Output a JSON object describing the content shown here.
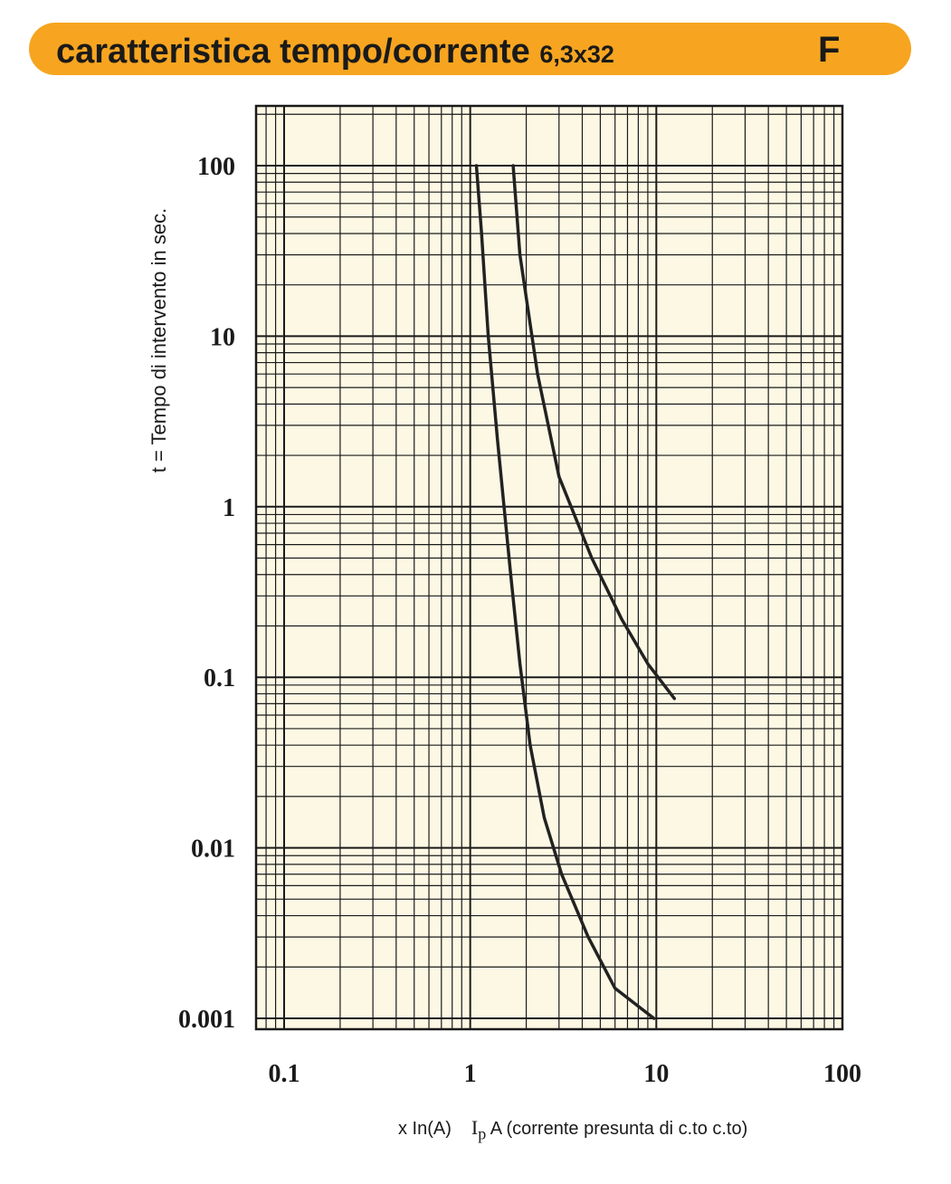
{
  "header": {
    "title": "caratteristica tempo/corrente",
    "subtitle": "6,3x32",
    "code": "F",
    "color": "#f7a520"
  },
  "chart_data": {
    "type": "line",
    "title": "caratteristica tempo/corrente 6,3x32",
    "xlabel_prefix": "x In(A)",
    "xlabel_symbol": "I",
    "xlabel_symbol_sub": "p",
    "xlabel_rest": "A (corrente presunta di c.to c.to)",
    "ylabel": "t = Tempo di intervento in sec.",
    "xscale": "log",
    "yscale": "log",
    "xlim": [
      0.08,
      100
    ],
    "ylim": [
      0.001,
      200
    ],
    "grid": true,
    "background": "#fdf8e4",
    "x_tick_labels": [
      "0.1",
      "1",
      "10",
      "100"
    ],
    "y_tick_labels": [
      "100",
      "10",
      "1",
      "0.1",
      "0.01",
      "0.001"
    ],
    "series": [
      {
        "x": [
          1.08,
          1.15,
          1.25,
          1.4,
          1.65,
          1.85,
          2.1,
          2.5,
          3.1,
          4.3,
          6.0,
          9.7
        ],
        "y": [
          100,
          40,
          10,
          2.5,
          0.4,
          0.12,
          0.04,
          0.015,
          0.007,
          0.003,
          0.0015,
          0.001
        ]
      },
      {
        "x": [
          1.7,
          1.85,
          2.3,
          3.0,
          4.5,
          6.5,
          9.0,
          12.5
        ],
        "y": [
          100,
          30,
          6,
          1.5,
          0.5,
          0.22,
          0.12,
          0.075
        ]
      }
    ],
    "line_color": "#222222"
  }
}
